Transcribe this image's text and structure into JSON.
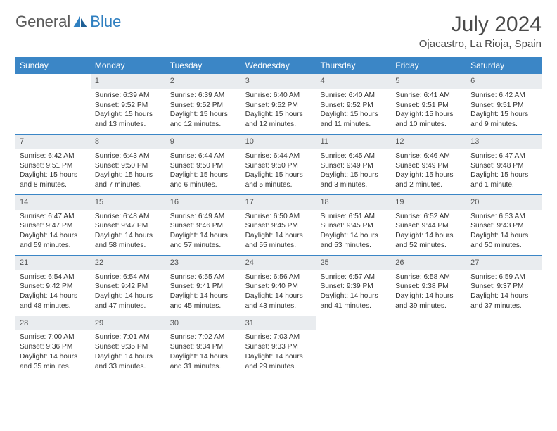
{
  "brand": {
    "word1": "General",
    "word2": "Blue"
  },
  "title": "July 2024",
  "subtitle": "Ojacastro, La Rioja, Spain",
  "dayNames": [
    "Sunday",
    "Monday",
    "Tuesday",
    "Wednesday",
    "Thursday",
    "Friday",
    "Saturday"
  ],
  "colors": {
    "headerBar": "#3b86c6",
    "dayNumBg": "#e9ecef",
    "rowBorder": "#3b86c6",
    "text": "#333333",
    "titleText": "#4a4a4a",
    "logoGray": "#5a5a5a",
    "logoBlue": "#2f7fc0"
  },
  "typography": {
    "title_fontsize": 30,
    "subtitle_fontsize": 15,
    "dayname_fontsize": 12,
    "cell_fontsize": 10.2
  },
  "weeks": [
    [
      {
        "num": "",
        "sunrise": "",
        "sunset": "",
        "daylight1": "",
        "daylight2": ""
      },
      {
        "num": "1",
        "sunrise": "Sunrise: 6:39 AM",
        "sunset": "Sunset: 9:52 PM",
        "daylight1": "Daylight: 15 hours",
        "daylight2": "and 13 minutes."
      },
      {
        "num": "2",
        "sunrise": "Sunrise: 6:39 AM",
        "sunset": "Sunset: 9:52 PM",
        "daylight1": "Daylight: 15 hours",
        "daylight2": "and 12 minutes."
      },
      {
        "num": "3",
        "sunrise": "Sunrise: 6:40 AM",
        "sunset": "Sunset: 9:52 PM",
        "daylight1": "Daylight: 15 hours",
        "daylight2": "and 12 minutes."
      },
      {
        "num": "4",
        "sunrise": "Sunrise: 6:40 AM",
        "sunset": "Sunset: 9:52 PM",
        "daylight1": "Daylight: 15 hours",
        "daylight2": "and 11 minutes."
      },
      {
        "num": "5",
        "sunrise": "Sunrise: 6:41 AM",
        "sunset": "Sunset: 9:51 PM",
        "daylight1": "Daylight: 15 hours",
        "daylight2": "and 10 minutes."
      },
      {
        "num": "6",
        "sunrise": "Sunrise: 6:42 AM",
        "sunset": "Sunset: 9:51 PM",
        "daylight1": "Daylight: 15 hours",
        "daylight2": "and 9 minutes."
      }
    ],
    [
      {
        "num": "7",
        "sunrise": "Sunrise: 6:42 AM",
        "sunset": "Sunset: 9:51 PM",
        "daylight1": "Daylight: 15 hours",
        "daylight2": "and 8 minutes."
      },
      {
        "num": "8",
        "sunrise": "Sunrise: 6:43 AM",
        "sunset": "Sunset: 9:50 PM",
        "daylight1": "Daylight: 15 hours",
        "daylight2": "and 7 minutes."
      },
      {
        "num": "9",
        "sunrise": "Sunrise: 6:44 AM",
        "sunset": "Sunset: 9:50 PM",
        "daylight1": "Daylight: 15 hours",
        "daylight2": "and 6 minutes."
      },
      {
        "num": "10",
        "sunrise": "Sunrise: 6:44 AM",
        "sunset": "Sunset: 9:50 PM",
        "daylight1": "Daylight: 15 hours",
        "daylight2": "and 5 minutes."
      },
      {
        "num": "11",
        "sunrise": "Sunrise: 6:45 AM",
        "sunset": "Sunset: 9:49 PM",
        "daylight1": "Daylight: 15 hours",
        "daylight2": "and 3 minutes."
      },
      {
        "num": "12",
        "sunrise": "Sunrise: 6:46 AM",
        "sunset": "Sunset: 9:49 PM",
        "daylight1": "Daylight: 15 hours",
        "daylight2": "and 2 minutes."
      },
      {
        "num": "13",
        "sunrise": "Sunrise: 6:47 AM",
        "sunset": "Sunset: 9:48 PM",
        "daylight1": "Daylight: 15 hours",
        "daylight2": "and 1 minute."
      }
    ],
    [
      {
        "num": "14",
        "sunrise": "Sunrise: 6:47 AM",
        "sunset": "Sunset: 9:47 PM",
        "daylight1": "Daylight: 14 hours",
        "daylight2": "and 59 minutes."
      },
      {
        "num": "15",
        "sunrise": "Sunrise: 6:48 AM",
        "sunset": "Sunset: 9:47 PM",
        "daylight1": "Daylight: 14 hours",
        "daylight2": "and 58 minutes."
      },
      {
        "num": "16",
        "sunrise": "Sunrise: 6:49 AM",
        "sunset": "Sunset: 9:46 PM",
        "daylight1": "Daylight: 14 hours",
        "daylight2": "and 57 minutes."
      },
      {
        "num": "17",
        "sunrise": "Sunrise: 6:50 AM",
        "sunset": "Sunset: 9:45 PM",
        "daylight1": "Daylight: 14 hours",
        "daylight2": "and 55 minutes."
      },
      {
        "num": "18",
        "sunrise": "Sunrise: 6:51 AM",
        "sunset": "Sunset: 9:45 PM",
        "daylight1": "Daylight: 14 hours",
        "daylight2": "and 53 minutes."
      },
      {
        "num": "19",
        "sunrise": "Sunrise: 6:52 AM",
        "sunset": "Sunset: 9:44 PM",
        "daylight1": "Daylight: 14 hours",
        "daylight2": "and 52 minutes."
      },
      {
        "num": "20",
        "sunrise": "Sunrise: 6:53 AM",
        "sunset": "Sunset: 9:43 PM",
        "daylight1": "Daylight: 14 hours",
        "daylight2": "and 50 minutes."
      }
    ],
    [
      {
        "num": "21",
        "sunrise": "Sunrise: 6:54 AM",
        "sunset": "Sunset: 9:42 PM",
        "daylight1": "Daylight: 14 hours",
        "daylight2": "and 48 minutes."
      },
      {
        "num": "22",
        "sunrise": "Sunrise: 6:54 AM",
        "sunset": "Sunset: 9:42 PM",
        "daylight1": "Daylight: 14 hours",
        "daylight2": "and 47 minutes."
      },
      {
        "num": "23",
        "sunrise": "Sunrise: 6:55 AM",
        "sunset": "Sunset: 9:41 PM",
        "daylight1": "Daylight: 14 hours",
        "daylight2": "and 45 minutes."
      },
      {
        "num": "24",
        "sunrise": "Sunrise: 6:56 AM",
        "sunset": "Sunset: 9:40 PM",
        "daylight1": "Daylight: 14 hours",
        "daylight2": "and 43 minutes."
      },
      {
        "num": "25",
        "sunrise": "Sunrise: 6:57 AM",
        "sunset": "Sunset: 9:39 PM",
        "daylight1": "Daylight: 14 hours",
        "daylight2": "and 41 minutes."
      },
      {
        "num": "26",
        "sunrise": "Sunrise: 6:58 AM",
        "sunset": "Sunset: 9:38 PM",
        "daylight1": "Daylight: 14 hours",
        "daylight2": "and 39 minutes."
      },
      {
        "num": "27",
        "sunrise": "Sunrise: 6:59 AM",
        "sunset": "Sunset: 9:37 PM",
        "daylight1": "Daylight: 14 hours",
        "daylight2": "and 37 minutes."
      }
    ],
    [
      {
        "num": "28",
        "sunrise": "Sunrise: 7:00 AM",
        "sunset": "Sunset: 9:36 PM",
        "daylight1": "Daylight: 14 hours",
        "daylight2": "and 35 minutes."
      },
      {
        "num": "29",
        "sunrise": "Sunrise: 7:01 AM",
        "sunset": "Sunset: 9:35 PM",
        "daylight1": "Daylight: 14 hours",
        "daylight2": "and 33 minutes."
      },
      {
        "num": "30",
        "sunrise": "Sunrise: 7:02 AM",
        "sunset": "Sunset: 9:34 PM",
        "daylight1": "Daylight: 14 hours",
        "daylight2": "and 31 minutes."
      },
      {
        "num": "31",
        "sunrise": "Sunrise: 7:03 AM",
        "sunset": "Sunset: 9:33 PM",
        "daylight1": "Daylight: 14 hours",
        "daylight2": "and 29 minutes."
      },
      {
        "num": "",
        "sunrise": "",
        "sunset": "",
        "daylight1": "",
        "daylight2": ""
      },
      {
        "num": "",
        "sunrise": "",
        "sunset": "",
        "daylight1": "",
        "daylight2": ""
      },
      {
        "num": "",
        "sunrise": "",
        "sunset": "",
        "daylight1": "",
        "daylight2": ""
      }
    ]
  ]
}
